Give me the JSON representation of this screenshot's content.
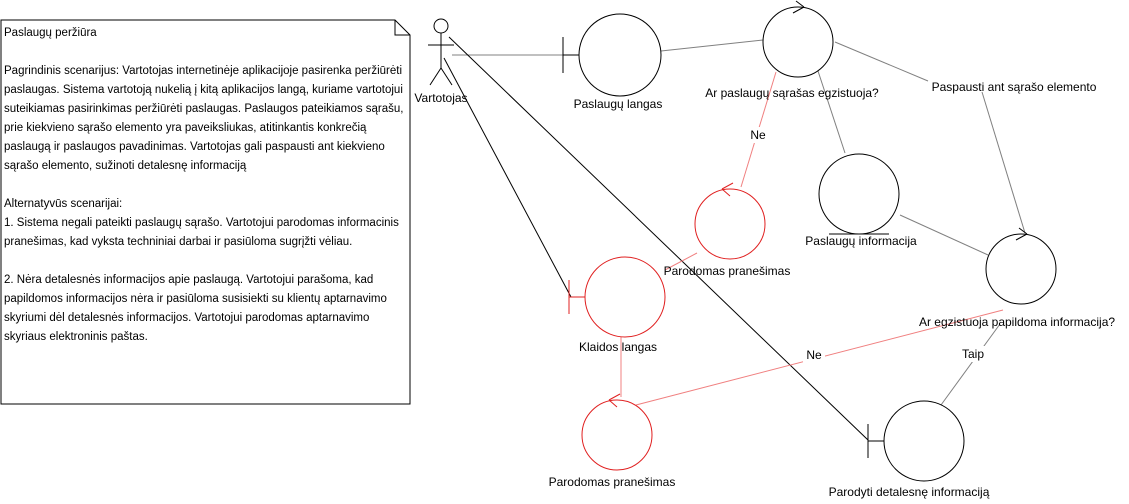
{
  "note": {
    "title": "Paslaugų peržiūra",
    "main_text": "Pagrindinis scenarijus: Vartotojas internetinėje aplikacijoje pasirenka peržiūrėti paslaugas. Sistema vartotoją nukelią į kitą aplikacijos langą, kuriame vartotojui suteikiamas pasirinkimas peržiūrėti paslaugas. Paslaugos pateikiamos sąrašu, prie kiekvieno sąrašo elemento yra paveiksliukas, atitinkantis konkrečią paslaugą ir paslaugos pavadinimas. Vartotojas gali paspausti ant kiekvieno sąrašo elemento, sužinoti detalesnę informaciją",
    "alt_title": "Alternatyvūs scenarijai:",
    "alt_1": "1. Sistema negali pateikti paslaugų sąrašo. Vartotojui parodomas informacinis pranešimas, kad vyksta techniniai darbai ir pasiūloma sugrįžti vėliau.",
    "alt_2": "2. Nėra detalesnės informacijos apie paslaugą. Vartotojui parašoma, kad papildomos informacijos nėra ir pasiūloma susisiekti su klientų aptarnavimo skyriumi dėl detalesnės informacijos. Vartotojui parodomas aptarnavimo skyriaus elektroninis paštas."
  },
  "actor": {
    "label": "Vartotojas"
  },
  "nodes": {
    "services_window": "Paslaugų langas",
    "list_exists": "Ar paslaugų sąrašas egzistuoja?",
    "click_item": "Paspausti ant sąrašo elemento",
    "service_info": "Paslaugų informacija",
    "message_top": "Parodomas pranešimas",
    "error_window": "Klaidos langas",
    "extra_info_exists": "Ar egzistuoja papildoma informacija?",
    "message_bottom": "Parodomas pranešimas",
    "show_details": "Parodyti detalesnę informaciją"
  },
  "edge_labels": {
    "no_top": "Ne",
    "no_bottom": "Ne",
    "yes": "Taip"
  },
  "colors": {
    "stroke": "#000000",
    "connector": "#808080",
    "error": "#e02020",
    "error_line": "#f08080"
  }
}
